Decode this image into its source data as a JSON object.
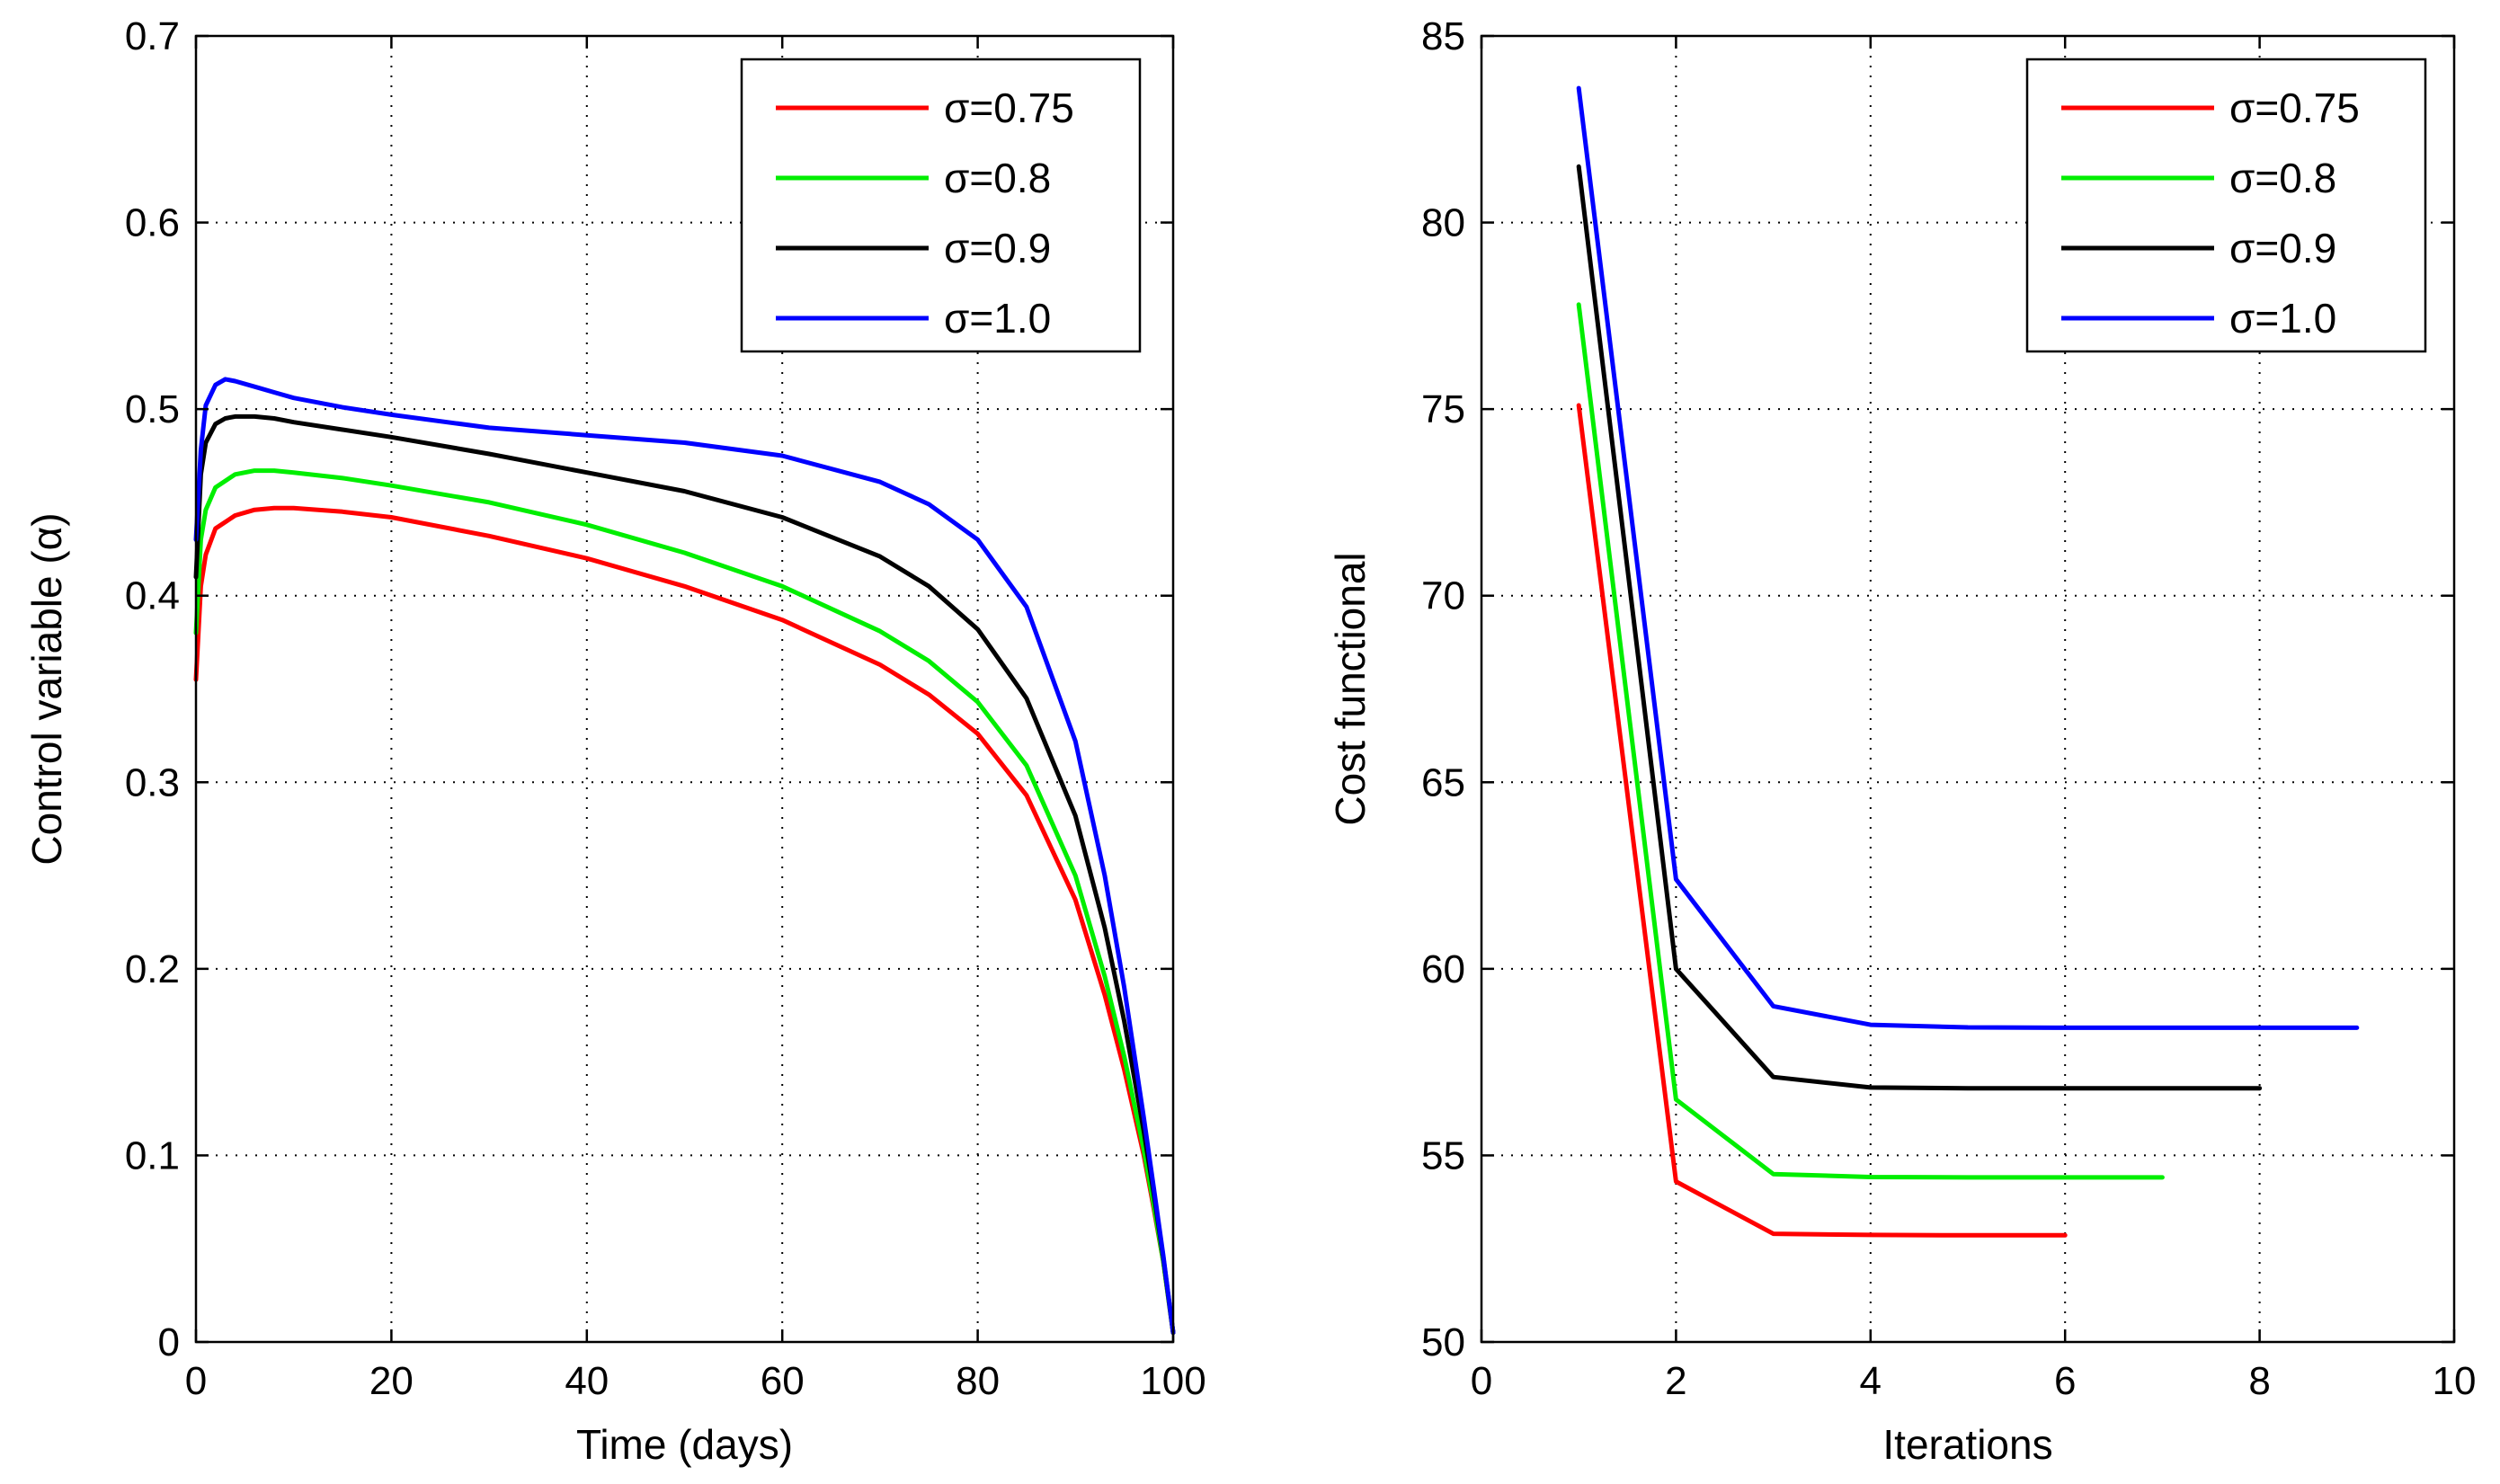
{
  "chart_data": [
    {
      "type": "line",
      "title": "",
      "xlabel": "Time (days)",
      "ylabel": "Control variable (α)",
      "xlim": [
        0,
        100
      ],
      "ylim": [
        0,
        0.7
      ],
      "xticks": [
        0,
        20,
        40,
        60,
        80,
        100
      ],
      "yticks": [
        0,
        0.1,
        0.2,
        0.3,
        0.4,
        0.5,
        0.6,
        0.7
      ],
      "grid": true,
      "legend_position": "top-right",
      "series": [
        {
          "name": "σ=0.75",
          "color": "#ff0000",
          "x": [
            0,
            0.5,
            1,
            2,
            4,
            6,
            8,
            10,
            15,
            20,
            30,
            40,
            50,
            60,
            70,
            75,
            80,
            85,
            90,
            93,
            95,
            97,
            98,
            99,
            100
          ],
          "y": [
            0.355,
            0.405,
            0.422,
            0.436,
            0.443,
            0.446,
            0.447,
            0.447,
            0.445,
            0.442,
            0.432,
            0.42,
            0.405,
            0.387,
            0.363,
            0.347,
            0.326,
            0.293,
            0.237,
            0.186,
            0.146,
            0.1,
            0.072,
            0.043,
            0.005
          ]
        },
        {
          "name": "σ=0.8",
          "color": "#00ee00",
          "x": [
            0,
            0.5,
            1,
            2,
            4,
            6,
            8,
            10,
            15,
            20,
            30,
            40,
            50,
            60,
            70,
            75,
            80,
            85,
            90,
            93,
            95,
            97,
            98,
            99,
            100
          ],
          "y": [
            0.38,
            0.43,
            0.446,
            0.458,
            0.465,
            0.467,
            0.467,
            0.466,
            0.463,
            0.459,
            0.45,
            0.438,
            0.423,
            0.405,
            0.381,
            0.365,
            0.343,
            0.309,
            0.25,
            0.196,
            0.153,
            0.103,
            0.074,
            0.043,
            0.005
          ]
        },
        {
          "name": "σ=0.9",
          "color": "#000000",
          "x": [
            0,
            0.5,
            1,
            2,
            3,
            4,
            6,
            8,
            10,
            15,
            20,
            30,
            40,
            50,
            60,
            70,
            75,
            80,
            85,
            90,
            93,
            95,
            97,
            98,
            99,
            100
          ],
          "y": [
            0.41,
            0.465,
            0.482,
            0.492,
            0.495,
            0.496,
            0.496,
            0.495,
            0.493,
            0.489,
            0.485,
            0.476,
            0.466,
            0.456,
            0.442,
            0.421,
            0.405,
            0.382,
            0.345,
            0.282,
            0.222,
            0.172,
            0.113,
            0.08,
            0.045,
            0.005
          ]
        },
        {
          "name": "σ=1.0",
          "color": "#0000ff",
          "x": [
            0,
            0.5,
            1,
            2,
            3,
            4,
            6,
            8,
            10,
            15,
            20,
            30,
            40,
            50,
            60,
            70,
            75,
            80,
            85,
            90,
            93,
            95,
            97,
            98,
            99,
            100
          ],
          "y": [
            0.43,
            0.478,
            0.502,
            0.513,
            0.516,
            0.515,
            0.512,
            0.509,
            0.506,
            0.501,
            0.497,
            0.49,
            0.486,
            0.482,
            0.475,
            0.461,
            0.449,
            0.43,
            0.394,
            0.322,
            0.25,
            0.19,
            0.12,
            0.083,
            0.046,
            0.005
          ]
        }
      ]
    },
    {
      "type": "line",
      "title": "",
      "xlabel": "Iterations",
      "ylabel": "Cost functional",
      "xlim": [
        0,
        10
      ],
      "ylim": [
        50,
        85
      ],
      "xticks": [
        0,
        2,
        4,
        6,
        8,
        10
      ],
      "yticks": [
        50,
        55,
        60,
        65,
        70,
        75,
        80,
        85
      ],
      "grid": true,
      "legend_position": "top-right",
      "series": [
        {
          "name": "σ=0.75",
          "color": "#ff0000",
          "x": [
            1,
            2,
            3,
            4,
            5,
            6
          ],
          "y": [
            75.1,
            54.3,
            52.9,
            52.87,
            52.86,
            52.86
          ]
        },
        {
          "name": "σ=0.8",
          "color": "#00ee00",
          "x": [
            1,
            2,
            3,
            4,
            5,
            6,
            7
          ],
          "y": [
            77.8,
            56.5,
            54.5,
            54.42,
            54.41,
            54.41,
            54.41
          ]
        },
        {
          "name": "σ=0.9",
          "color": "#000000",
          "x": [
            1,
            2,
            3,
            4,
            5,
            6,
            7,
            8
          ],
          "y": [
            81.5,
            60.0,
            57.1,
            56.82,
            56.8,
            56.8,
            56.8,
            56.8
          ]
        },
        {
          "name": "σ=1.0",
          "color": "#0000ff",
          "x": [
            1,
            2,
            3,
            4,
            5,
            6,
            7,
            8,
            9
          ],
          "y": [
            83.6,
            62.4,
            59.0,
            58.5,
            58.43,
            58.42,
            58.42,
            58.42,
            58.42
          ]
        }
      ]
    }
  ]
}
